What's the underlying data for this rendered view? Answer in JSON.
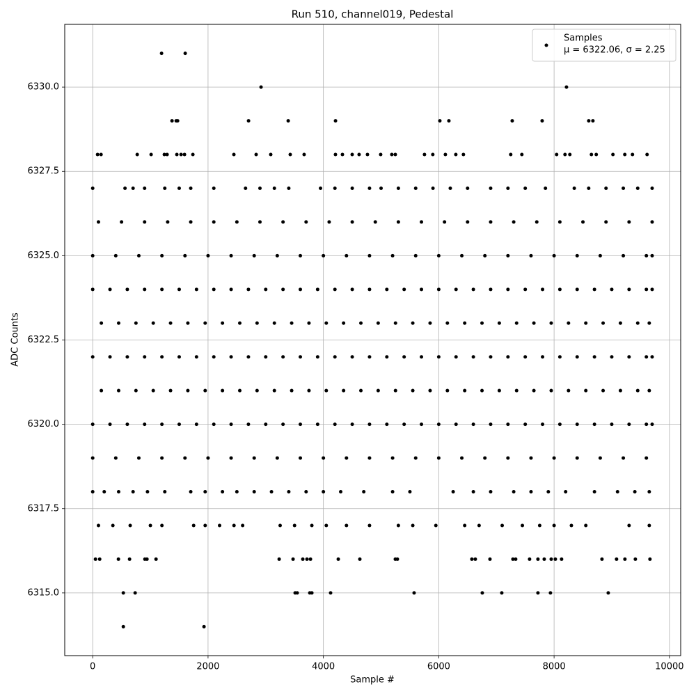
{
  "chart_data": {
    "type": "scatter",
    "title": "Run 510, channel019, Pedestal",
    "xlabel": "Sample #",
    "ylabel": "ADC Counts",
    "xlim": [
      -485,
      10195
    ],
    "ylim": [
      6313.14,
      6331.86
    ],
    "xticks": [
      0,
      2000,
      4000,
      6000,
      8000,
      10000
    ],
    "yticks": [
      {
        "value": 6315,
        "label": "6315.0"
      },
      {
        "value": 6317.5,
        "label": "6317.5"
      },
      {
        "value": 6320,
        "label": "6320.0"
      },
      {
        "value": 6322.5,
        "label": "6322.5"
      },
      {
        "value": 6325,
        "label": "6325.0"
      },
      {
        "value": 6327.5,
        "label": "6327.5"
      },
      {
        "value": 6330,
        "label": "6330.0"
      }
    ],
    "grid": true,
    "legend": {
      "loc": "upper right",
      "text": "μ = 6322.06, σ = 2.25"
    },
    "series": [
      {
        "name": "Samples",
        "color": "#000000",
        "x": [
          1194,
          1604,
          2919,
          8215,
          1375,
          1448,
          1472,
          2702,
          3390,
          4210,
          6019,
          6176,
          7274,
          7793,
          8601,
          8673,
          531,
          1930,
          531,
          736,
          3510,
          3546,
          3764,
          3800,
          4125,
          5573,
          6755,
          7093,
          7720,
          7937,
          8939,
          48,
          121,
          446,
          639,
          905,
          941,
          1098,
          3233,
          3474,
          3643,
          3715,
          3776,
          4258,
          4632,
          5247,
          5283,
          6574,
          6634,
          6888,
          7286,
          7334,
          7575,
          7720,
          7829,
          7950,
          8022,
          8130,
          8830,
          9083,
          9228,
          9409,
          9662,
          84,
          145,
          772,
          1013,
          1242,
          1290,
          1459,
          1532,
          1592,
          1737,
          2448,
          2834,
          3087,
          3425,
          3666,
          4209,
          4330,
          4499,
          4619,
          4764,
          4993,
          5186,
          5247,
          5753,
          5897,
          6115,
          6296,
          6428,
          7248,
          7441,
          8044,
          8189,
          8273,
          8647,
          8731,
          9020,
          9226,
          9359,
          9612,
          0,
          560,
          700,
          900,
          1250,
          1500,
          1700,
          2100,
          2650,
          2900,
          3150,
          3400,
          3950,
          4200,
          4500,
          4800,
          5000,
          5300,
          5600,
          5900,
          6200,
          6500,
          6900,
          7200,
          7500,
          7850,
          8350,
          8600,
          8900,
          9200,
          9450,
          9700,
          100,
          350,
          650,
          1000,
          1200,
          1750,
          1950,
          2200,
          2450,
          2600,
          3250,
          3500,
          3800,
          4050,
          4400,
          4800,
          5300,
          5550,
          5950,
          6450,
          6700,
          7100,
          7450,
          7750,
          8000,
          8300,
          8550,
          9300,
          9650,
          0,
          200,
          450,
          700,
          950,
          1250,
          1700,
          1950,
          2250,
          2500,
          2800,
          3100,
          3400,
          3700,
          4000,
          4300,
          4700,
          5200,
          5500,
          6250,
          6600,
          6900,
          7300,
          7600,
          7900,
          8200,
          8700,
          9100,
          9400,
          9650,
          0,
          400,
          800,
          1200,
          1600,
          2000,
          2400,
          2800,
          3200,
          3600,
          4000,
          4400,
          4800,
          5200,
          5600,
          6000,
          6400,
          6800,
          7200,
          7600,
          8000,
          8400,
          8800,
          9200,
          9600,
          100,
          500,
          900,
          1300,
          1700,
          2100,
          2500,
          2900,
          3300,
          3700,
          4100,
          4500,
          4900,
          5300,
          5700,
          6100,
          6500,
          6900,
          7300,
          7700,
          8100,
          8500,
          8900,
          9300,
          9700,
          0,
          400,
          800,
          1200,
          1600,
          2000,
          2400,
          2800,
          3200,
          3600,
          4000,
          4400,
          4800,
          5200,
          5600,
          6000,
          6400,
          6800,
          7200,
          7600,
          8000,
          8400,
          8800,
          9200,
          9600,
          9700,
          0,
          300,
          600,
          900,
          1200,
          1500,
          1800,
          2100,
          2400,
          2700,
          3000,
          3300,
          3600,
          3900,
          4200,
          4500,
          4800,
          5100,
          5400,
          5700,
          6000,
          6300,
          6600,
          6900,
          7200,
          7500,
          7800,
          8100,
          8400,
          8700,
          9000,
          9300,
          9600,
          9700,
          150,
          450,
          750,
          1050,
          1350,
          1650,
          1950,
          2250,
          2550,
          2850,
          3150,
          3450,
          3750,
          4050,
          4350,
          4650,
          4950,
          5250,
          5550,
          5850,
          6150,
          6450,
          6750,
          7050,
          7350,
          7650,
          7950,
          8250,
          8550,
          8850,
          9150,
          9450,
          9650,
          0,
          300,
          600,
          900,
          1200,
          1500,
          1800,
          2100,
          2400,
          2700,
          3000,
          3300,
          3600,
          3900,
          4200,
          4500,
          4800,
          5100,
          5400,
          5700,
          6000,
          6300,
          6600,
          6900,
          7200,
          7500,
          7800,
          8100,
          8400,
          8700,
          9000,
          9300,
          9600,
          9700,
          150,
          450,
          750,
          1050,
          1350,
          1650,
          1950,
          2250,
          2550,
          2850,
          3150,
          3450,
          3750,
          4050,
          4350,
          4650,
          4950,
          5250,
          5550,
          5850,
          6150,
          6450,
          6750,
          7050,
          7350,
          7650,
          7950,
          8250,
          8550,
          8850,
          9150,
          9450,
          9650,
          0,
          300,
          600,
          900,
          1200,
          1500,
          1800,
          2100,
          2400,
          2700,
          3000,
          3300,
          3600,
          3900,
          4200,
          4500,
          4800,
          5100,
          5400,
          5700,
          6000,
          6300,
          6600,
          6900,
          7200,
          7500,
          7800,
          8100,
          8400,
          8700,
          9000,
          9300,
          9600,
          9700
        ],
        "values": [
          6331,
          6331,
          6330,
          6330,
          6329,
          6329,
          6329,
          6329,
          6329,
          6329,
          6329,
          6329,
          6329,
          6329,
          6329,
          6329,
          6314,
          6314,
          6315,
          6315,
          6315,
          6315,
          6315,
          6315,
          6315,
          6315,
          6315,
          6315,
          6315,
          6315,
          6315,
          6316,
          6316,
          6316,
          6316,
          6316,
          6316,
          6316,
          6316,
          6316,
          6316,
          6316,
          6316,
          6316,
          6316,
          6316,
          6316,
          6316,
          6316,
          6316,
          6316,
          6316,
          6316,
          6316,
          6316,
          6316,
          6316,
          6316,
          6316,
          6316,
          6316,
          6316,
          6316,
          6328,
          6328,
          6328,
          6328,
          6328,
          6328,
          6328,
          6328,
          6328,
          6328,
          6328,
          6328,
          6328,
          6328,
          6328,
          6328,
          6328,
          6328,
          6328,
          6328,
          6328,
          6328,
          6328,
          6328,
          6328,
          6328,
          6328,
          6328,
          6328,
          6328,
          6328,
          6328,
          6328,
          6328,
          6328,
          6328,
          6328,
          6328,
          6328,
          6327,
          6327,
          6327,
          6327,
          6327,
          6327,
          6327,
          6327,
          6327,
          6327,
          6327,
          6327,
          6327,
          6327,
          6327,
          6327,
          6327,
          6327,
          6327,
          6327,
          6327,
          6327,
          6327,
          6327,
          6327,
          6327,
          6327,
          6327,
          6327,
          6327,
          6327,
          6327,
          6317,
          6317,
          6317,
          6317,
          6317,
          6317,
          6317,
          6317,
          6317,
          6317,
          6317,
          6317,
          6317,
          6317,
          6317,
          6317,
          6317,
          6317,
          6317,
          6317,
          6317,
          6317,
          6317,
          6317,
          6317,
          6317,
          6317,
          6317,
          6317,
          6318,
          6318,
          6318,
          6318,
          6318,
          6318,
          6318,
          6318,
          6318,
          6318,
          6318,
          6318,
          6318,
          6318,
          6318,
          6318,
          6318,
          6318,
          6318,
          6318,
          6318,
          6318,
          6318,
          6318,
          6318,
          6318,
          6318,
          6318,
          6318,
          6318,
          6319,
          6319,
          6319,
          6319,
          6319,
          6319,
          6319,
          6319,
          6319,
          6319,
          6319,
          6319,
          6319,
          6319,
          6319,
          6319,
          6319,
          6319,
          6319,
          6319,
          6319,
          6319,
          6319,
          6319,
          6319,
          6326,
          6326,
          6326,
          6326,
          6326,
          6326,
          6326,
          6326,
          6326,
          6326,
          6326,
          6326,
          6326,
          6326,
          6326,
          6326,
          6326,
          6326,
          6326,
          6326,
          6326,
          6326,
          6326,
          6326,
          6326,
          6325,
          6325,
          6325,
          6325,
          6325,
          6325,
          6325,
          6325,
          6325,
          6325,
          6325,
          6325,
          6325,
          6325,
          6325,
          6325,
          6325,
          6325,
          6325,
          6325,
          6325,
          6325,
          6325,
          6325,
          6325,
          6325,
          6320,
          6320,
          6320,
          6320,
          6320,
          6320,
          6320,
          6320,
          6320,
          6320,
          6320,
          6320,
          6320,
          6320,
          6320,
          6320,
          6320,
          6320,
          6320,
          6320,
          6320,
          6320,
          6320,
          6320,
          6320,
          6320,
          6320,
          6320,
          6320,
          6320,
          6320,
          6320,
          6320,
          6320,
          6321,
          6321,
          6321,
          6321,
          6321,
          6321,
          6321,
          6321,
          6321,
          6321,
          6321,
          6321,
          6321,
          6321,
          6321,
          6321,
          6321,
          6321,
          6321,
          6321,
          6321,
          6321,
          6321,
          6321,
          6321,
          6321,
          6321,
          6321,
          6321,
          6321,
          6321,
          6321,
          6321,
          6322,
          6322,
          6322,
          6322,
          6322,
          6322,
          6322,
          6322,
          6322,
          6322,
          6322,
          6322,
          6322,
          6322,
          6322,
          6322,
          6322,
          6322,
          6322,
          6322,
          6322,
          6322,
          6322,
          6322,
          6322,
          6322,
          6322,
          6322,
          6322,
          6322,
          6322,
          6322,
          6322,
          6322,
          6323,
          6323,
          6323,
          6323,
          6323,
          6323,
          6323,
          6323,
          6323,
          6323,
          6323,
          6323,
          6323,
          6323,
          6323,
          6323,
          6323,
          6323,
          6323,
          6323,
          6323,
          6323,
          6323,
          6323,
          6323,
          6323,
          6323,
          6323,
          6323,
          6323,
          6323,
          6323,
          6323,
          6324,
          6324,
          6324,
          6324,
          6324,
          6324,
          6324,
          6324,
          6324,
          6324,
          6324,
          6324,
          6324,
          6324,
          6324,
          6324,
          6324,
          6324,
          6324,
          6324,
          6324,
          6324,
          6324,
          6324,
          6324,
          6324,
          6324,
          6324,
          6324,
          6324,
          6324,
          6324,
          6324,
          6324
        ]
      }
    ]
  }
}
